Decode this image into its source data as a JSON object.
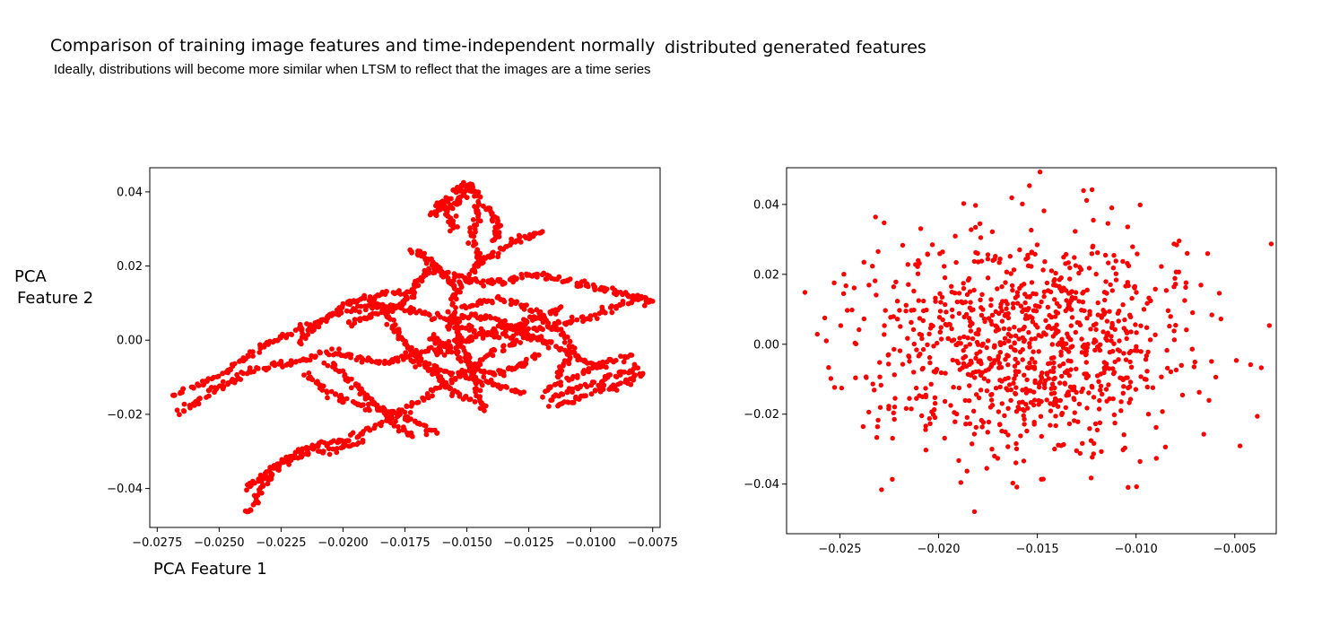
{
  "header": {
    "title_part1": "Comparison of training image features and time-independent normally",
    "title_part2": "distributed generated features",
    "subtitle": "Ideally, distributions will become more similar when LTSM to reflect that the images are a time series"
  },
  "axis_labels": {
    "ylabel_line1": "PCA",
    "ylabel_line2": "Feature 2",
    "xlabel": "PCA Feature 1"
  },
  "chart_data": [
    {
      "type": "scatter",
      "panel": "left",
      "description_key": "training-image-features",
      "xlim": [
        -0.0278,
        -0.0072
      ],
      "ylim": [
        -0.0505,
        0.0465
      ],
      "x_ticks": [
        -0.0275,
        -0.025,
        -0.0225,
        -0.02,
        -0.0175,
        -0.015,
        -0.0125,
        -0.01,
        -0.0075
      ],
      "x_tick_labels": [
        "−0.0275",
        "−0.0250",
        "−0.0225",
        "−0.0200",
        "−0.0175",
        "−0.0150",
        "−0.0125",
        "−0.0100",
        "−0.0075"
      ],
      "y_ticks": [
        -0.04,
        -0.02,
        0.0,
        0.02,
        0.04
      ],
      "y_tick_labels": [
        "−0.04",
        "−0.02",
        "0.00",
        "0.02",
        "0.04"
      ],
      "color": "#ff0000",
      "grid": false,
      "paths": [
        [
          [
            -0.0269,
            -0.0155
          ],
          [
            -0.0262,
            -0.013
          ],
          [
            -0.0255,
            -0.011
          ],
          [
            -0.0248,
            -0.009
          ],
          [
            -0.0242,
            -0.006
          ],
          [
            -0.0236,
            -0.003
          ],
          [
            -0.023,
            -0.001
          ],
          [
            -0.0224,
            0.001
          ],
          [
            -0.0218,
            0.003
          ],
          [
            -0.0212,
            0.004
          ],
          [
            -0.0205,
            0.006
          ],
          [
            -0.0198,
            0.008
          ],
          [
            -0.019,
            0.009
          ],
          [
            -0.0182,
            0.0095
          ],
          [
            -0.0175,
            0.0085
          ],
          [
            -0.0168,
            0.0075
          ],
          [
            -0.016,
            0.006
          ],
          [
            -0.0152,
            0.004
          ],
          [
            -0.0145,
            0.002
          ],
          [
            -0.0138,
            0.001
          ],
          [
            -0.013,
            0.0015
          ],
          [
            -0.0122,
            0.003
          ],
          [
            -0.0115,
            0.004
          ],
          [
            -0.0108,
            0.005
          ],
          [
            -0.01,
            0.006
          ],
          [
            -0.0093,
            0.008
          ],
          [
            -0.0086,
            0.01
          ],
          [
            -0.008,
            0.011
          ],
          [
            -0.0075,
            0.0105
          ]
        ],
        [
          [
            -0.0266,
            -0.02
          ],
          [
            -0.026,
            -0.017
          ],
          [
            -0.0254,
            -0.014
          ],
          [
            -0.0248,
            -0.012
          ],
          [
            -0.0242,
            -0.01
          ],
          [
            -0.0235,
            -0.008
          ],
          [
            -0.0228,
            -0.007
          ],
          [
            -0.022,
            -0.006
          ],
          [
            -0.0213,
            -0.0045
          ],
          [
            -0.0206,
            -0.003
          ],
          [
            -0.0199,
            -0.0035
          ],
          [
            -0.0192,
            -0.005
          ],
          [
            -0.0185,
            -0.006
          ],
          [
            -0.0178,
            -0.0055
          ],
          [
            -0.017,
            -0.004
          ],
          [
            -0.0162,
            -0.002
          ],
          [
            -0.0155,
            -0.0005
          ],
          [
            -0.0148,
            0.0
          ]
        ],
        [
          [
            -0.0238,
            -0.047
          ],
          [
            -0.0235,
            -0.043
          ],
          [
            -0.0232,
            -0.039
          ],
          [
            -0.0228,
            -0.036
          ],
          [
            -0.0224,
            -0.033
          ],
          [
            -0.022,
            -0.031
          ],
          [
            -0.0214,
            -0.029
          ],
          [
            -0.0208,
            -0.028
          ],
          [
            -0.02,
            -0.027
          ],
          [
            -0.0193,
            -0.025
          ],
          [
            -0.0186,
            -0.023
          ],
          [
            -0.0178,
            -0.02
          ],
          [
            -0.0171,
            -0.017
          ],
          [
            -0.0164,
            -0.014
          ],
          [
            -0.0157,
            -0.011
          ],
          [
            -0.015,
            -0.008
          ],
          [
            -0.0143,
            -0.005
          ],
          [
            -0.0136,
            -0.002
          ],
          [
            -0.0128,
            0.0
          ],
          [
            -0.012,
            0.001
          ]
        ],
        [
          [
            -0.0239,
            -0.04
          ],
          [
            -0.0234,
            -0.037
          ],
          [
            -0.0228,
            -0.034
          ],
          [
            -0.0222,
            -0.032
          ],
          [
            -0.0215,
            -0.031
          ],
          [
            -0.0208,
            -0.03
          ],
          [
            -0.02,
            -0.029
          ],
          [
            -0.0192,
            -0.027
          ]
        ],
        [
          [
            -0.0163,
            0.035
          ],
          [
            -0.0158,
            0.038
          ],
          [
            -0.0154,
            0.041
          ],
          [
            -0.015,
            0.042
          ],
          [
            -0.0147,
            0.04
          ],
          [
            -0.0145,
            0.036
          ],
          [
            -0.0147,
            0.032
          ],
          [
            -0.0148,
            0.028
          ],
          [
            -0.0146,
            0.024
          ],
          [
            -0.0145,
            0.021
          ],
          [
            -0.0147,
            0.018
          ],
          [
            -0.0152,
            0.015
          ],
          [
            -0.0155,
            0.012
          ],
          [
            -0.0156,
            0.008
          ],
          [
            -0.0155,
            0.004
          ],
          [
            -0.0153,
            0.0
          ],
          [
            -0.015,
            -0.004
          ],
          [
            -0.0148,
            -0.008
          ],
          [
            -0.0146,
            -0.012
          ],
          [
            -0.0145,
            -0.016
          ],
          [
            -0.0143,
            -0.019
          ]
        ],
        [
          [
            -0.0145,
            0.021
          ],
          [
            -0.014,
            0.023
          ],
          [
            -0.0135,
            0.025
          ],
          [
            -0.013,
            0.027
          ],
          [
            -0.0125,
            0.028
          ],
          [
            -0.012,
            0.029
          ]
        ],
        [
          [
            -0.0165,
            0.034
          ],
          [
            -0.0159,
            0.035
          ],
          [
            -0.0153,
            0.037
          ],
          [
            -0.015,
            0.039
          ],
          [
            -0.0148,
            0.042
          ]
        ],
        [
          [
            -0.0142,
            0.036
          ],
          [
            -0.0139,
            0.033
          ],
          [
            -0.0137,
            0.03
          ],
          [
            -0.0139,
            0.027
          ]
        ],
        [
          [
            -0.0118,
            -0.016
          ],
          [
            -0.011,
            -0.014
          ],
          [
            -0.0102,
            -0.012
          ],
          [
            -0.0095,
            -0.0105
          ],
          [
            -0.0088,
            -0.009
          ],
          [
            -0.0081,
            -0.0075
          ]
        ],
        [
          [
            -0.0118,
            -0.0135
          ],
          [
            -0.0112,
            -0.011
          ],
          [
            -0.0104,
            -0.009
          ],
          [
            -0.0097,
            -0.007
          ],
          [
            -0.009,
            -0.0055
          ],
          [
            -0.0084,
            -0.004
          ]
        ],
        [
          [
            -0.0115,
            -0.018
          ],
          [
            -0.0107,
            -0.016
          ],
          [
            -0.0099,
            -0.014
          ],
          [
            -0.0092,
            -0.0125
          ],
          [
            -0.0085,
            -0.011
          ],
          [
            -0.0079,
            -0.009
          ]
        ],
        [
          [
            -0.0113,
            -0.01
          ],
          [
            -0.011,
            -0.006
          ],
          [
            -0.0108,
            -0.002
          ],
          [
            -0.0112,
            0.002
          ],
          [
            -0.0118,
            0.005
          ],
          [
            -0.0124,
            0.008
          ],
          [
            -0.013,
            0.01
          ],
          [
            -0.0137,
            0.011
          ],
          [
            -0.0144,
            0.01
          ],
          [
            -0.0152,
            0.009
          ]
        ],
        [
          [
            -0.0198,
            0.004
          ],
          [
            -0.0192,
            0.006
          ],
          [
            -0.0186,
            0.0075
          ],
          [
            -0.018,
            0.0085
          ],
          [
            -0.0175,
            0.0105
          ],
          [
            -0.0172,
            0.013
          ],
          [
            -0.017,
            0.016
          ],
          [
            -0.0167,
            0.018
          ],
          [
            -0.0162,
            0.019
          ],
          [
            -0.0156,
            0.018
          ],
          [
            -0.015,
            0.016
          ],
          [
            -0.0143,
            0.0155
          ],
          [
            -0.0136,
            0.016
          ],
          [
            -0.013,
            0.017
          ],
          [
            -0.0123,
            0.018
          ],
          [
            -0.0117,
            0.017
          ],
          [
            -0.011,
            0.016
          ],
          [
            -0.0103,
            0.015
          ],
          [
            -0.0096,
            0.014
          ],
          [
            -0.009,
            0.013
          ],
          [
            -0.0084,
            0.012
          ],
          [
            -0.0078,
            0.0115
          ]
        ],
        [
          [
            -0.0172,
            0.024
          ],
          [
            -0.0168,
            0.023
          ],
          [
            -0.0165,
            0.021
          ],
          [
            -0.0162,
            0.019
          ],
          [
            -0.0158,
            0.017
          ],
          [
            -0.0155,
            0.014
          ]
        ],
        [
          [
            -0.0206,
            -0.006
          ],
          [
            -0.02,
            -0.009
          ],
          [
            -0.0195,
            -0.012
          ],
          [
            -0.019,
            -0.015
          ],
          [
            -0.0186,
            -0.018
          ],
          [
            -0.0182,
            -0.021
          ],
          [
            -0.0177,
            -0.024
          ],
          [
            -0.0172,
            -0.026
          ]
        ],
        [
          [
            -0.0187,
            0.01
          ],
          [
            -0.0183,
            0.007
          ],
          [
            -0.018,
            0.004
          ],
          [
            -0.0177,
            0.001
          ],
          [
            -0.0173,
            -0.002
          ],
          [
            -0.0169,
            -0.005
          ],
          [
            -0.0165,
            -0.008
          ],
          [
            -0.016,
            -0.011
          ],
          [
            -0.0155,
            -0.014
          ],
          [
            -0.0149,
            -0.016
          ]
        ],
        [
          [
            -0.0177,
            -0.004
          ],
          [
            -0.017,
            -0.006
          ],
          [
            -0.0163,
            -0.008
          ],
          [
            -0.0156,
            -0.009
          ],
          [
            -0.0148,
            -0.01
          ],
          [
            -0.0141,
            -0.0115
          ],
          [
            -0.0134,
            -0.013
          ],
          [
            -0.0127,
            -0.014
          ]
        ],
        [
          [
            -0.0215,
            -0.009
          ],
          [
            -0.021,
            -0.012
          ],
          [
            -0.0203,
            -0.015
          ],
          [
            -0.0196,
            -0.017
          ],
          [
            -0.0189,
            -0.018
          ],
          [
            -0.0182,
            -0.019
          ],
          [
            -0.0175,
            -0.021
          ],
          [
            -0.0168,
            -0.023
          ],
          [
            -0.0162,
            -0.025
          ]
        ],
        [
          [
            -0.0218,
            -0.001
          ],
          [
            -0.0214,
            0.002
          ],
          [
            -0.0209,
            0.005
          ],
          [
            -0.0204,
            0.007
          ],
          [
            -0.0199,
            0.01
          ],
          [
            -0.0193,
            0.011
          ],
          [
            -0.0186,
            0.012
          ],
          [
            -0.0179,
            0.013
          ],
          [
            -0.0173,
            0.013
          ]
        ],
        [
          [
            -0.0158,
            0.004
          ],
          [
            -0.0152,
            0.006
          ],
          [
            -0.0146,
            0.007
          ],
          [
            -0.014,
            0.006
          ],
          [
            -0.0133,
            0.004
          ],
          [
            -0.0127,
            0.002
          ],
          [
            -0.012,
            0.0
          ],
          [
            -0.0114,
            -0.002
          ],
          [
            -0.0107,
            -0.004
          ],
          [
            -0.0101,
            -0.006
          ],
          [
            -0.0095,
            -0.007
          ]
        ],
        [
          [
            -0.0163,
            -0.004
          ],
          [
            -0.0157,
            -0.002
          ],
          [
            -0.015,
            0.0
          ],
          [
            -0.0143,
            0.002
          ],
          [
            -0.0137,
            0.003
          ],
          [
            -0.013,
            0.004
          ],
          [
            -0.0124,
            0.006
          ],
          [
            -0.0118,
            0.007
          ],
          [
            -0.0112,
            0.009
          ]
        ],
        [
          [
            -0.0165,
            0.001
          ],
          [
            -0.016,
            -0.001
          ],
          [
            -0.0155,
            -0.003
          ],
          [
            -0.015,
            -0.006
          ],
          [
            -0.0145,
            -0.008
          ],
          [
            -0.0139,
            -0.009
          ],
          [
            -0.0133,
            -0.008
          ],
          [
            -0.0127,
            -0.006
          ],
          [
            -0.0121,
            -0.004
          ]
        ],
        [
          [
            -0.0155,
            0.03
          ],
          [
            -0.0157,
            0.033
          ],
          [
            -0.0159,
            0.036
          ],
          [
            -0.0162,
            0.037
          ]
        ]
      ]
    },
    {
      "type": "scatter",
      "panel": "right",
      "description_key": "generated-normal-features",
      "xlim": [
        -0.0277,
        -0.0029
      ],
      "ylim": [
        -0.0542,
        0.0505
      ],
      "x_ticks": [
        -0.025,
        -0.02,
        -0.015,
        -0.01,
        -0.005
      ],
      "x_tick_labels": [
        "−0.025",
        "−0.020",
        "−0.015",
        "−0.010",
        "−0.005"
      ],
      "y_ticks": [
        -0.04,
        -0.02,
        0.0,
        0.02,
        0.04
      ],
      "y_tick_labels": [
        "−0.04",
        "−0.02",
        "0.00",
        "0.02",
        "0.04"
      ],
      "color": "#ff0000",
      "grid": false,
      "distribution": {
        "center_x": -0.0155,
        "center_y": 0.0,
        "std_x": 0.0042,
        "std_y": 0.0155,
        "count": 1000
      }
    }
  ]
}
